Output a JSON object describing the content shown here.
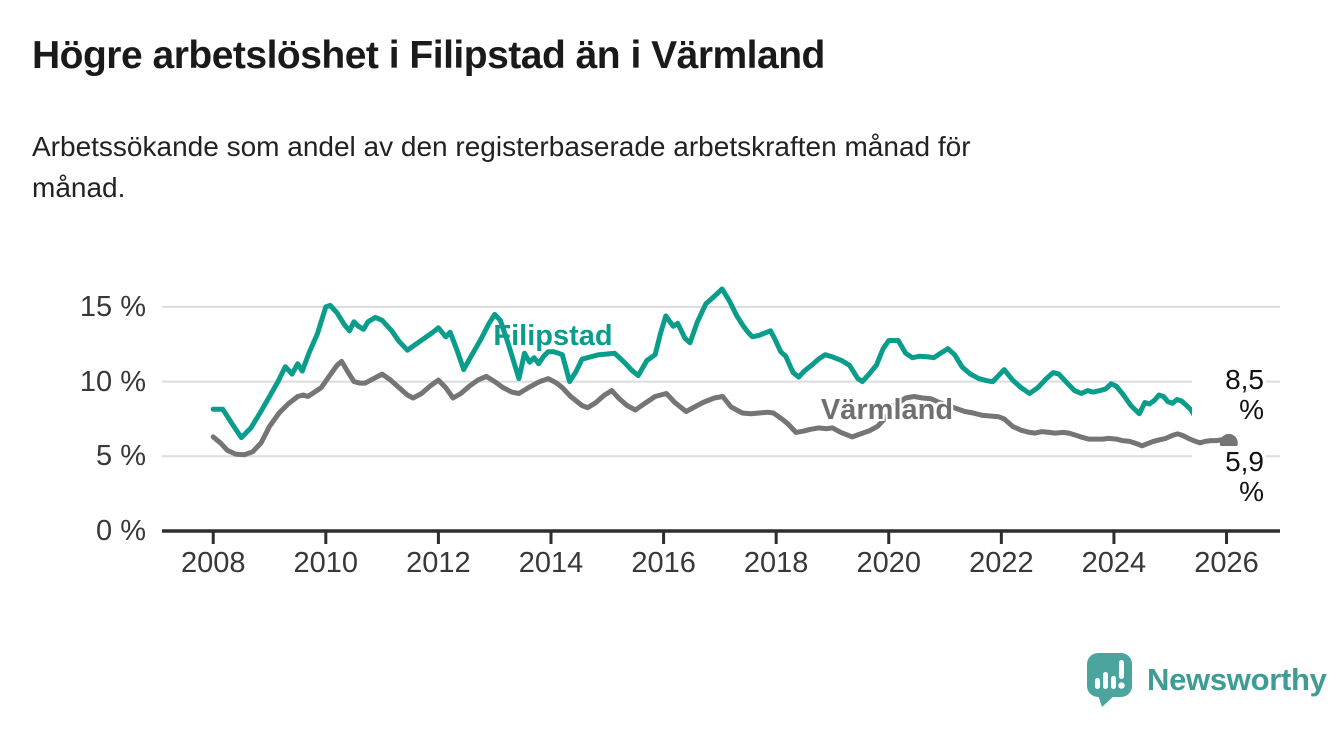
{
  "header": {
    "title": "Högre arbetslöshet i Filipstad än i Värmland",
    "subtitle": {
      "line1": "Arbetssökande som andel av den registerbaserade arbetskraften månad för",
      "line2": "månad."
    }
  },
  "footer": {
    "brand": "Newsworthy",
    "logo_icon": "bar-chart-speech-bubble-icon",
    "logo_color": "#4BA59E",
    "brand_text_color": "#3E9C95"
  },
  "chart_data": {
    "type": "line",
    "unit": "%",
    "x_unit": "decimal_year",
    "x_domain": [
      2007.09,
      2026.95
    ],
    "y_domain": [
      0,
      16.8
    ],
    "grid_values": [
      5,
      10,
      15
    ],
    "grid_on": true,
    "legend_position": "inline-labels",
    "x_tick_values": [
      2008,
      2010,
      2012,
      2014,
      2016,
      2018,
      2020,
      2022,
      2024,
      2026
    ],
    "x_tick_labels": [
      "2008",
      "2010",
      "2012",
      "2014",
      "2016",
      "2018",
      "2020",
      "2022",
      "2024",
      "2026"
    ],
    "y_tick_values": [
      0,
      5,
      10,
      15
    ],
    "y_tick_labels": [
      "0 %",
      "5 %",
      "10 %",
      "15 %"
    ],
    "colors": {
      "filipstad": "#0A9D8C",
      "varmland": "#757575",
      "gridline": "#DCDCDC",
      "axis": "#2E2E2E",
      "tick_text": "#383838"
    },
    "series": [
      {
        "name": "Filipstad",
        "color": "#0A9D8C",
        "end_label": "8,5 %",
        "end_value": 8.5,
        "points": [
          [
            2008.0,
            8.15
          ],
          [
            2008.17,
            8.15
          ],
          [
            2008.33,
            7.2
          ],
          [
            2008.5,
            6.25
          ],
          [
            2008.67,
            6.9
          ],
          [
            2008.83,
            7.9
          ],
          [
            2009.0,
            9.0
          ],
          [
            2009.15,
            10.0
          ],
          [
            2009.28,
            11.0
          ],
          [
            2009.4,
            10.5
          ],
          [
            2009.5,
            11.2
          ],
          [
            2009.58,
            10.7
          ],
          [
            2009.7,
            11.9
          ],
          [
            2009.85,
            13.2
          ],
          [
            2010.0,
            15.0
          ],
          [
            2010.08,
            15.1
          ],
          [
            2010.2,
            14.6
          ],
          [
            2010.33,
            13.8
          ],
          [
            2010.42,
            13.4
          ],
          [
            2010.5,
            14.0
          ],
          [
            2010.58,
            13.7
          ],
          [
            2010.67,
            13.5
          ],
          [
            2010.75,
            14.0
          ],
          [
            2010.88,
            14.3
          ],
          [
            2011.0,
            14.1
          ],
          [
            2011.17,
            13.4
          ],
          [
            2011.3,
            12.7
          ],
          [
            2011.45,
            12.1
          ],
          [
            2011.6,
            12.5
          ],
          [
            2011.75,
            12.9
          ],
          [
            2011.9,
            13.3
          ],
          [
            2012.0,
            13.6
          ],
          [
            2012.13,
            13.0
          ],
          [
            2012.21,
            13.3
          ],
          [
            2012.33,
            12.1
          ],
          [
            2012.45,
            10.8
          ],
          [
            2012.58,
            11.7
          ],
          [
            2012.75,
            12.8
          ],
          [
            2012.9,
            13.9
          ],
          [
            2013.0,
            14.5
          ],
          [
            2013.1,
            14.1
          ],
          [
            2013.2,
            13.0
          ],
          [
            2013.3,
            11.8
          ],
          [
            2013.43,
            10.2
          ],
          [
            2013.53,
            11.9
          ],
          [
            2013.62,
            11.3
          ],
          [
            2013.7,
            11.6
          ],
          [
            2013.78,
            11.2
          ],
          [
            2013.87,
            11.7
          ],
          [
            2013.95,
            12.0
          ],
          [
            2014.05,
            12.0
          ],
          [
            2014.13,
            11.9
          ],
          [
            2014.2,
            11.8
          ],
          [
            2014.33,
            10.0
          ],
          [
            2014.45,
            10.7
          ],
          [
            2014.55,
            11.5
          ],
          [
            2014.7,
            11.65
          ],
          [
            2014.85,
            11.8
          ],
          [
            2015.0,
            11.85
          ],
          [
            2015.13,
            11.9
          ],
          [
            2015.3,
            11.3
          ],
          [
            2015.45,
            10.7
          ],
          [
            2015.55,
            10.4
          ],
          [
            2015.7,
            11.4
          ],
          [
            2015.85,
            11.8
          ],
          [
            2015.95,
            13.3
          ],
          [
            2016.04,
            14.4
          ],
          [
            2016.17,
            13.7
          ],
          [
            2016.25,
            13.9
          ],
          [
            2016.38,
            12.9
          ],
          [
            2016.47,
            12.6
          ],
          [
            2016.6,
            14.0
          ],
          [
            2016.75,
            15.2
          ],
          [
            2016.9,
            15.7
          ],
          [
            2017.04,
            16.2
          ],
          [
            2017.17,
            15.4
          ],
          [
            2017.3,
            14.4
          ],
          [
            2017.42,
            13.7
          ],
          [
            2017.5,
            13.3
          ],
          [
            2017.58,
            13.0
          ],
          [
            2017.7,
            13.1
          ],
          [
            2017.83,
            13.3
          ],
          [
            2017.9,
            13.4
          ],
          [
            2017.97,
            12.9
          ],
          [
            2018.08,
            12.0
          ],
          [
            2018.17,
            11.7
          ],
          [
            2018.3,
            10.6
          ],
          [
            2018.4,
            10.3
          ],
          [
            2018.5,
            10.7
          ],
          [
            2018.63,
            11.1
          ],
          [
            2018.75,
            11.5
          ],
          [
            2018.87,
            11.8
          ],
          [
            2019.0,
            11.65
          ],
          [
            2019.17,
            11.4
          ],
          [
            2019.3,
            11.1
          ],
          [
            2019.45,
            10.2
          ],
          [
            2019.53,
            10.0
          ],
          [
            2019.65,
            10.5
          ],
          [
            2019.78,
            11.1
          ],
          [
            2019.9,
            12.2
          ],
          [
            2020.0,
            12.75
          ],
          [
            2020.17,
            12.75
          ],
          [
            2020.3,
            11.9
          ],
          [
            2020.42,
            11.6
          ],
          [
            2020.55,
            11.7
          ],
          [
            2020.7,
            11.65
          ],
          [
            2020.8,
            11.6
          ],
          [
            2020.92,
            11.9
          ],
          [
            2021.05,
            12.2
          ],
          [
            2021.17,
            11.8
          ],
          [
            2021.3,
            11.0
          ],
          [
            2021.45,
            10.5
          ],
          [
            2021.6,
            10.2
          ],
          [
            2021.75,
            10.05
          ],
          [
            2021.85,
            10.0
          ],
          [
            2021.95,
            10.4
          ],
          [
            2022.05,
            10.8
          ],
          [
            2022.2,
            10.1
          ],
          [
            2022.35,
            9.6
          ],
          [
            2022.5,
            9.2
          ],
          [
            2022.65,
            9.6
          ],
          [
            2022.8,
            10.2
          ],
          [
            2022.92,
            10.6
          ],
          [
            2023.02,
            10.5
          ],
          [
            2023.17,
            9.9
          ],
          [
            2023.3,
            9.4
          ],
          [
            2023.42,
            9.2
          ],
          [
            2023.53,
            9.4
          ],
          [
            2023.63,
            9.3
          ],
          [
            2023.75,
            9.4
          ],
          [
            2023.85,
            9.5
          ],
          [
            2023.95,
            9.85
          ],
          [
            2024.04,
            9.7
          ],
          [
            2024.17,
            9.1
          ],
          [
            2024.3,
            8.4
          ],
          [
            2024.45,
            7.85
          ],
          [
            2024.55,
            8.6
          ],
          [
            2024.63,
            8.5
          ],
          [
            2024.72,
            8.75
          ],
          [
            2024.8,
            9.1
          ],
          [
            2024.88,
            9.0
          ],
          [
            2024.96,
            8.65
          ],
          [
            2025.04,
            8.55
          ],
          [
            2025.12,
            8.8
          ],
          [
            2025.2,
            8.7
          ],
          [
            2025.29,
            8.4
          ],
          [
            2025.37,
            8.1
          ],
          [
            2025.48,
            7.4
          ],
          [
            2025.58,
            7.7
          ],
          [
            2025.68,
            8.1
          ],
          [
            2025.78,
            8.3
          ],
          [
            2025.88,
            8.4
          ],
          [
            2025.96,
            8.35
          ],
          [
            2026.04,
            8.5
          ]
        ]
      },
      {
        "name": "Värmland",
        "color": "#757575",
        "end_label": "5,9 %",
        "end_value": 5.9,
        "points": [
          [
            2008.0,
            6.3
          ],
          [
            2008.13,
            5.9
          ],
          [
            2008.25,
            5.4
          ],
          [
            2008.4,
            5.15
          ],
          [
            2008.55,
            5.1
          ],
          [
            2008.7,
            5.3
          ],
          [
            2008.85,
            5.9
          ],
          [
            2009.0,
            7.0
          ],
          [
            2009.17,
            7.9
          ],
          [
            2009.33,
            8.5
          ],
          [
            2009.5,
            9.0
          ],
          [
            2009.6,
            9.1
          ],
          [
            2009.68,
            9.0
          ],
          [
            2009.8,
            9.3
          ],
          [
            2009.92,
            9.6
          ],
          [
            2010.05,
            10.3
          ],
          [
            2010.2,
            11.1
          ],
          [
            2010.28,
            11.35
          ],
          [
            2010.4,
            10.6
          ],
          [
            2010.5,
            10.0
          ],
          [
            2010.6,
            9.9
          ],
          [
            2010.7,
            9.9
          ],
          [
            2010.85,
            10.2
          ],
          [
            2011.0,
            10.5
          ],
          [
            2011.15,
            10.1
          ],
          [
            2011.3,
            9.6
          ],
          [
            2011.45,
            9.1
          ],
          [
            2011.55,
            8.9
          ],
          [
            2011.7,
            9.2
          ],
          [
            2011.85,
            9.7
          ],
          [
            2012.0,
            10.1
          ],
          [
            2012.13,
            9.6
          ],
          [
            2012.26,
            8.9
          ],
          [
            2012.4,
            9.2
          ],
          [
            2012.55,
            9.7
          ],
          [
            2012.7,
            10.1
          ],
          [
            2012.85,
            10.35
          ],
          [
            2013.0,
            10.0
          ],
          [
            2013.15,
            9.6
          ],
          [
            2013.3,
            9.3
          ],
          [
            2013.43,
            9.2
          ],
          [
            2013.6,
            9.6
          ],
          [
            2013.8,
            10.0
          ],
          [
            2013.95,
            10.2
          ],
          [
            2014.1,
            9.9
          ],
          [
            2014.2,
            9.6
          ],
          [
            2014.35,
            9.0
          ],
          [
            2014.55,
            8.4
          ],
          [
            2014.65,
            8.25
          ],
          [
            2014.8,
            8.6
          ],
          [
            2014.95,
            9.1
          ],
          [
            2015.08,
            9.4
          ],
          [
            2015.2,
            8.9
          ],
          [
            2015.35,
            8.4
          ],
          [
            2015.5,
            8.1
          ],
          [
            2015.65,
            8.5
          ],
          [
            2015.85,
            9.0
          ],
          [
            2016.05,
            9.2
          ],
          [
            2016.2,
            8.6
          ],
          [
            2016.4,
            8.0
          ],
          [
            2016.55,
            8.3
          ],
          [
            2016.7,
            8.6
          ],
          [
            2016.9,
            8.9
          ],
          [
            2017.05,
            9.0
          ],
          [
            2017.2,
            8.3
          ],
          [
            2017.4,
            7.9
          ],
          [
            2017.55,
            7.85
          ],
          [
            2017.7,
            7.9
          ],
          [
            2017.85,
            7.95
          ],
          [
            2017.95,
            7.9
          ],
          [
            2018.1,
            7.5
          ],
          [
            2018.2,
            7.2
          ],
          [
            2018.35,
            6.6
          ],
          [
            2018.5,
            6.7
          ],
          [
            2018.6,
            6.8
          ],
          [
            2018.75,
            6.9
          ],
          [
            2018.9,
            6.85
          ],
          [
            2019.0,
            6.9
          ],
          [
            2019.15,
            6.6
          ],
          [
            2019.35,
            6.3
          ],
          [
            2019.5,
            6.5
          ],
          [
            2019.65,
            6.7
          ],
          [
            2019.8,
            7.0
          ],
          [
            2019.95,
            7.6
          ],
          [
            2020.1,
            8.4
          ],
          [
            2020.3,
            8.9
          ],
          [
            2020.45,
            9.0
          ],
          [
            2020.6,
            8.9
          ],
          [
            2020.75,
            8.85
          ],
          [
            2020.9,
            8.6
          ],
          [
            2021.05,
            8.4
          ],
          [
            2021.2,
            8.2
          ],
          [
            2021.35,
            8.0
          ],
          [
            2021.5,
            7.9
          ],
          [
            2021.65,
            7.75
          ],
          [
            2021.8,
            7.7
          ],
          [
            2021.95,
            7.65
          ],
          [
            2022.05,
            7.5
          ],
          [
            2022.2,
            7.0
          ],
          [
            2022.35,
            6.75
          ],
          [
            2022.5,
            6.6
          ],
          [
            2022.6,
            6.55
          ],
          [
            2022.72,
            6.65
          ],
          [
            2022.85,
            6.6
          ],
          [
            2022.95,
            6.55
          ],
          [
            2023.1,
            6.6
          ],
          [
            2023.2,
            6.55
          ],
          [
            2023.33,
            6.4
          ],
          [
            2023.45,
            6.25
          ],
          [
            2023.55,
            6.15
          ],
          [
            2023.7,
            6.15
          ],
          [
            2023.8,
            6.15
          ],
          [
            2023.9,
            6.2
          ],
          [
            2024.04,
            6.15
          ],
          [
            2024.15,
            6.05
          ],
          [
            2024.28,
            6.0
          ],
          [
            2024.4,
            5.85
          ],
          [
            2024.5,
            5.7
          ],
          [
            2024.6,
            5.85
          ],
          [
            2024.7,
            6.0
          ],
          [
            2024.8,
            6.1
          ],
          [
            2024.92,
            6.2
          ],
          [
            2025.04,
            6.4
          ],
          [
            2025.13,
            6.5
          ],
          [
            2025.22,
            6.4
          ],
          [
            2025.35,
            6.15
          ],
          [
            2025.45,
            6.0
          ],
          [
            2025.53,
            5.9
          ],
          [
            2025.62,
            6.0
          ],
          [
            2025.72,
            6.05
          ],
          [
            2025.82,
            6.05
          ],
          [
            2025.9,
            6.1
          ],
          [
            2026.04,
            5.9
          ]
        ]
      }
    ]
  }
}
